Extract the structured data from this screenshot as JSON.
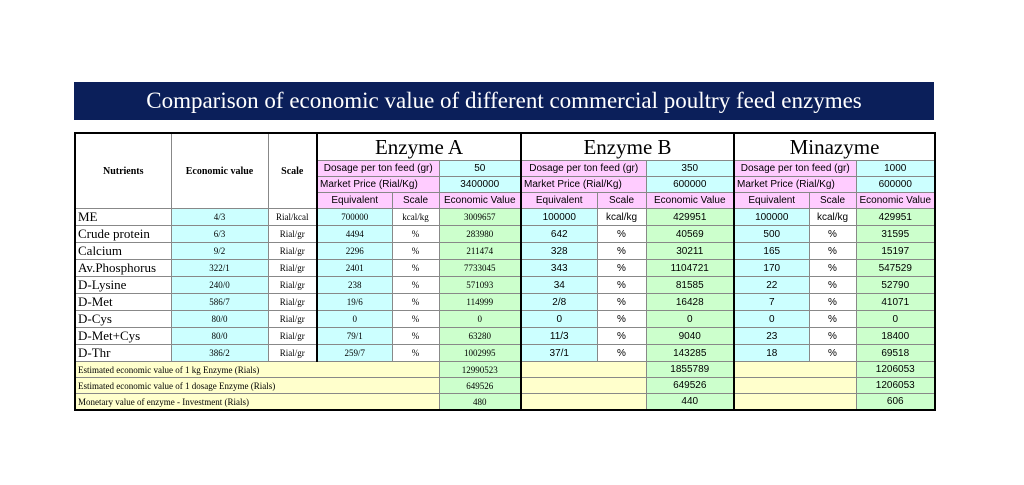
{
  "title": "Comparison of economic value of different commercial poultry feed enzymes",
  "headers": {
    "nutrients": "Nutrients",
    "economic_value": "Economic value",
    "scale": "Scale",
    "dosage_label": "Dosage per ton feed (gr)",
    "price_label": "Market Price (Rial/Kg)",
    "equivalent": "Equivalent",
    "scale_sub": "Scale",
    "econ_value": "Economic Value"
  },
  "enzymes": [
    {
      "name": "Enzyme A",
      "dosage": "50",
      "price": "3400000"
    },
    {
      "name": "Enzyme B",
      "dosage": "350",
      "price": "600000"
    },
    {
      "name": "Minazyme",
      "dosage": "1000",
      "price": "600000"
    }
  ],
  "rows": [
    {
      "nutrient": "ME",
      "value": "4/3",
      "scale": "Rial/kcal",
      "e": [
        [
          "700000",
          "kcal/kg",
          "3009657"
        ],
        [
          "100000",
          "kcal/kg",
          "429951"
        ],
        [
          "100000",
          "kcal/kg",
          "429951"
        ]
      ]
    },
    {
      "nutrient": "Crude protein",
      "value": "6/3",
      "scale": "Rial/gr",
      "e": [
        [
          "4494",
          "%",
          "283980"
        ],
        [
          "642",
          "%",
          "40569"
        ],
        [
          "500",
          "%",
          "31595"
        ]
      ]
    },
    {
      "nutrient": "Calcium",
      "value": "9/2",
      "scale": "Rial/gr",
      "e": [
        [
          "2296",
          "%",
          "211474"
        ],
        [
          "328",
          "%",
          "30211"
        ],
        [
          "165",
          "%",
          "15197"
        ]
      ]
    },
    {
      "nutrient": "Av.Phosphorus",
      "value": "322/1",
      "scale": "Rial/gr",
      "e": [
        [
          "2401",
          "%",
          "7733045"
        ],
        [
          "343",
          "%",
          "1104721"
        ],
        [
          "170",
          "%",
          "547529"
        ]
      ]
    },
    {
      "nutrient": "D-Lysine",
      "value": "240/0",
      "scale": "Rial/gr",
      "e": [
        [
          "238",
          "%",
          "571093"
        ],
        [
          "34",
          "%",
          "81585"
        ],
        [
          "22",
          "%",
          "52790"
        ]
      ]
    },
    {
      "nutrient": "D-Met",
      "value": "586/7",
      "scale": "Rial/gr",
      "e": [
        [
          "19/6",
          "%",
          "114999"
        ],
        [
          "2/8",
          "%",
          "16428"
        ],
        [
          "7",
          "%",
          "41071"
        ]
      ]
    },
    {
      "nutrient": "D-Cys",
      "value": "80/0",
      "scale": "Rial/gr",
      "e": [
        [
          "0",
          "%",
          "0"
        ],
        [
          "0",
          "%",
          "0"
        ],
        [
          "0",
          "%",
          "0"
        ]
      ]
    },
    {
      "nutrient": "D-Met+Cys",
      "value": "80/0",
      "scale": "Rial/gr",
      "e": [
        [
          "79/1",
          "%",
          "63280"
        ],
        [
          "11/3",
          "%",
          "9040"
        ],
        [
          "23",
          "%",
          "18400"
        ]
      ]
    },
    {
      "nutrient": "D-Thr",
      "value": "386/2",
      "scale": "Rial/gr",
      "e": [
        [
          "259/7",
          "%",
          "1002995"
        ],
        [
          "37/1",
          "%",
          "143285"
        ],
        [
          "18",
          "%",
          "69518"
        ]
      ]
    }
  ],
  "summary": [
    {
      "label": "Estimated economic value of 1 kg Enzyme (Rials)",
      "values": [
        "12990523",
        "1855789",
        "1206053"
      ]
    },
    {
      "label": "Estimated economic value of 1 dosage Enzyme (Rials)",
      "values": [
        "649526",
        "649526",
        "1206053"
      ]
    },
    {
      "label": "Monetary value of enzyme - Investment (Rials)",
      "values": [
        "480",
        "440",
        "606"
      ]
    }
  ]
}
